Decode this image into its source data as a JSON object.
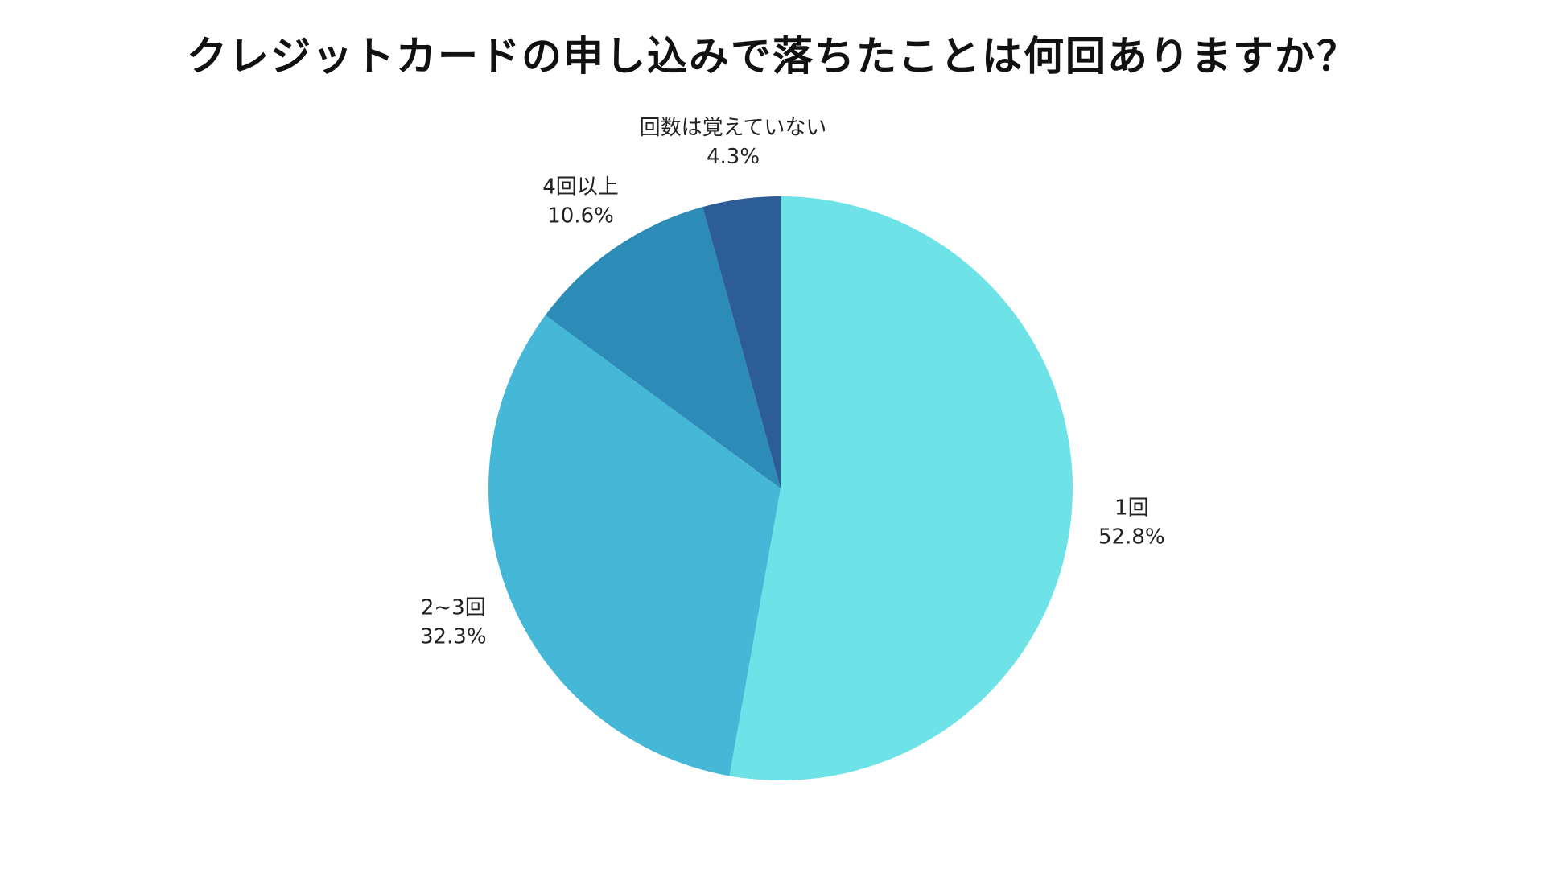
{
  "chart_data": {
    "type": "pie",
    "title": "クレジットカードの申し込みで落ちたことは何回ありますか？",
    "start_angle_deg": 0,
    "direction": "clockwise",
    "slices": [
      {
        "label": "1回",
        "value": 52.8,
        "value_label": "52.8%",
        "color": "#6de3e7"
      },
      {
        "label": "2~3回",
        "value": 32.3,
        "value_label": "32.3%",
        "color": "#44b8d6"
      },
      {
        "label": "4回以上",
        "value": 10.6,
        "value_label": "10.6%",
        "color": "#2d8bb7"
      },
      {
        "label": "回数は覚えていない",
        "value": 4.3,
        "value_label": "4.3%",
        "color": "#2d5d96"
      }
    ]
  }
}
